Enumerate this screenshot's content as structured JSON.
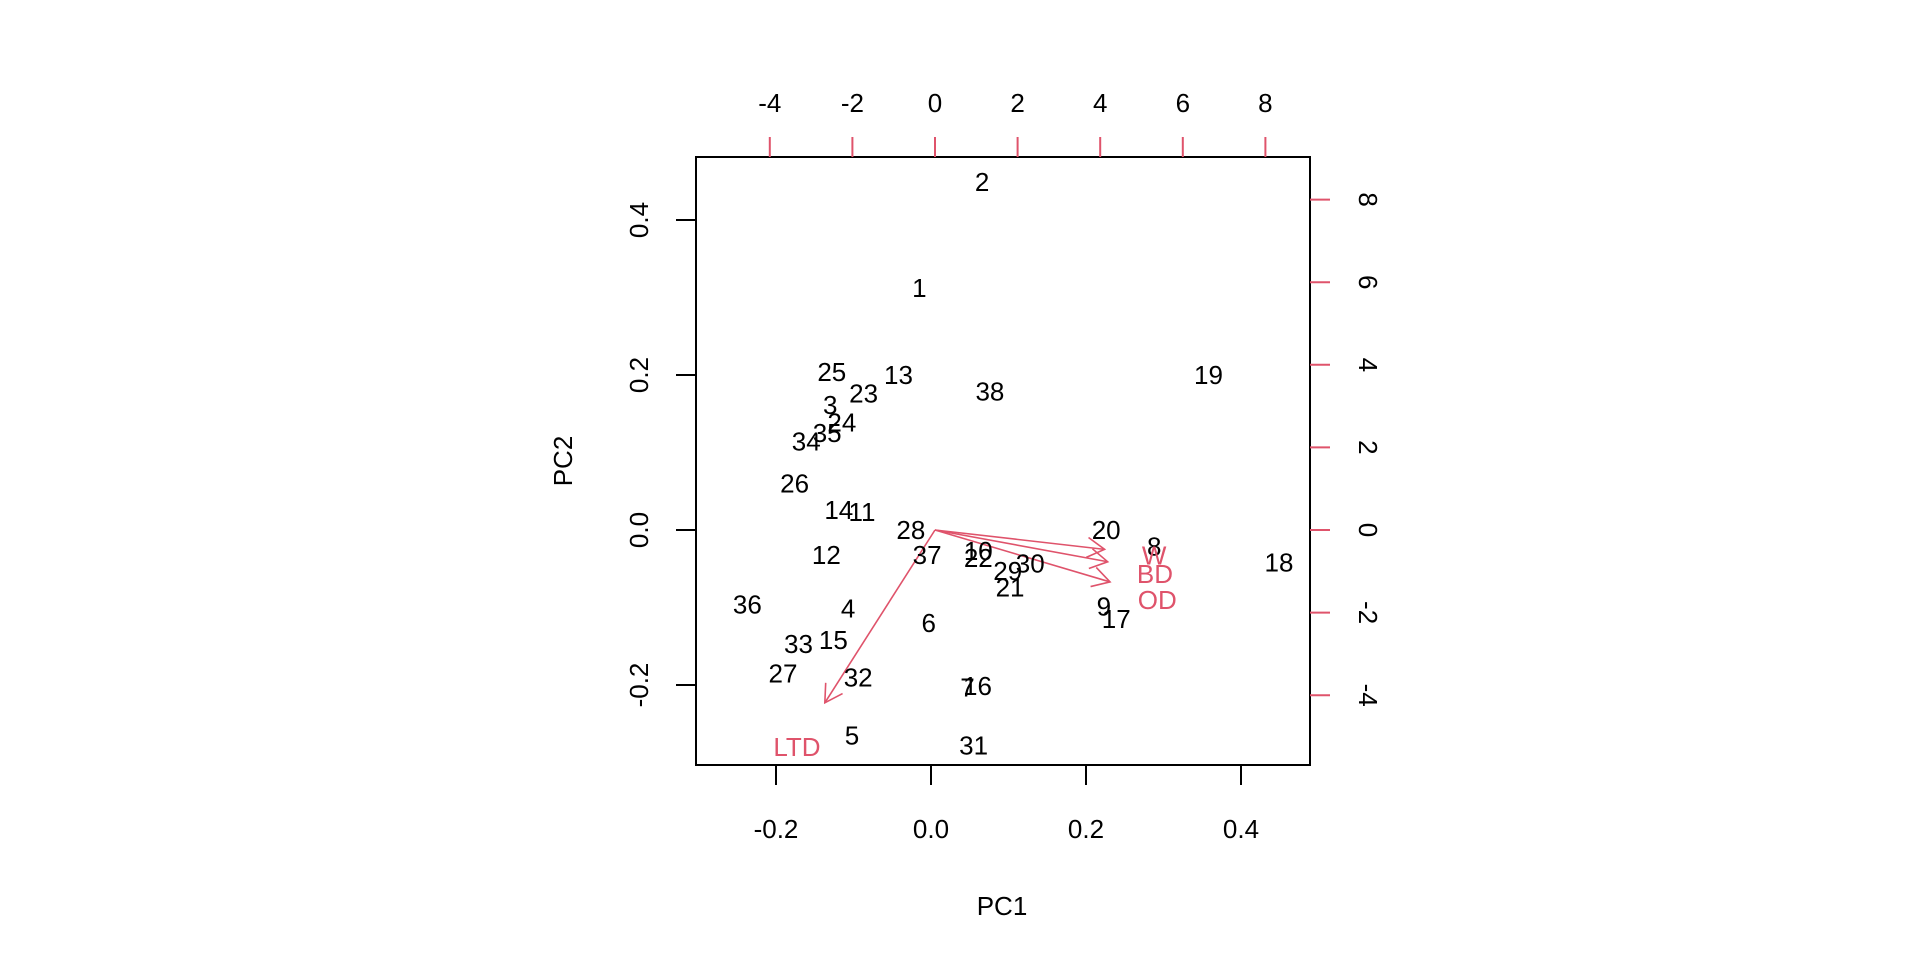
{
  "colors": {
    "background": "#ffffff",
    "observations": "#000000",
    "variables": "#DF536B",
    "axis": "#000000"
  },
  "chart_data": {
    "type": "scatter",
    "subtype": "biplot",
    "title": "",
    "xlabel": "PC1",
    "ylabel": "PC2",
    "xlim": [
      -0.31,
      0.49
    ],
    "ylim": [
      -0.304,
      0.48
    ],
    "grid": false,
    "legend": null,
    "bottom_ticks": [
      "-0.2",
      "0.0",
      "0.2",
      "0.4"
    ],
    "left_ticks": [
      "-0.2",
      "0.0",
      "0.2",
      "0.4"
    ],
    "top_ticks": [
      "-4",
      "-2",
      "0",
      "2",
      "4",
      "6",
      "8"
    ],
    "right_ticks": [
      "-4",
      "-2",
      "0",
      "2",
      "4",
      "6",
      "8"
    ],
    "observations": [
      {
        "label": "1",
        "x": -0.015,
        "y": 0.312
      },
      {
        "label": "2",
        "x": 0.066,
        "y": 0.449
      },
      {
        "label": "3",
        "x": -0.13,
        "y": 0.161
      },
      {
        "label": "4",
        "x": -0.107,
        "y": -0.101
      },
      {
        "label": "5",
        "x": -0.102,
        "y": -0.265
      },
      {
        "label": "6",
        "x": -0.003,
        "y": -0.12
      },
      {
        "label": "7",
        "x": 0.047,
        "y": -0.203
      },
      {
        "label": "8",
        "x": 0.288,
        "y": -0.021
      },
      {
        "label": "9",
        "x": 0.223,
        "y": -0.099
      },
      {
        "label": "10",
        "x": 0.061,
        "y": -0.027
      },
      {
        "label": "11",
        "x": -0.089,
        "y": 0.023
      },
      {
        "label": "12",
        "x": -0.135,
        "y": -0.032
      },
      {
        "label": "13",
        "x": -0.042,
        "y": 0.2
      },
      {
        "label": "14",
        "x": -0.119,
        "y": 0.026
      },
      {
        "label": "15",
        "x": -0.126,
        "y": -0.142
      },
      {
        "label": "16",
        "x": 0.06,
        "y": -0.201
      },
      {
        "label": "17",
        "x": 0.239,
        "y": -0.115
      },
      {
        "label": "18",
        "x": 0.449,
        "y": -0.042
      },
      {
        "label": "19",
        "x": 0.358,
        "y": 0.2
      },
      {
        "label": "20",
        "x": 0.226,
        "y": 0.0
      },
      {
        "label": "21",
        "x": 0.102,
        "y": -0.074
      },
      {
        "label": "22",
        "x": 0.061,
        "y": -0.036
      },
      {
        "label": "23",
        "x": -0.087,
        "y": 0.176
      },
      {
        "label": "24",
        "x": -0.115,
        "y": 0.139
      },
      {
        "label": "25",
        "x": -0.128,
        "y": 0.204
      },
      {
        "label": "26",
        "x": -0.176,
        "y": 0.06
      },
      {
        "label": "27",
        "x": -0.191,
        "y": -0.185
      },
      {
        "label": "28",
        "x": -0.026,
        "y": 0.0
      },
      {
        "label": "29",
        "x": 0.099,
        "y": -0.053
      },
      {
        "label": "30",
        "x": 0.128,
        "y": -0.043
      },
      {
        "label": "31",
        "x": 0.055,
        "y": -0.278
      },
      {
        "label": "32",
        "x": -0.094,
        "y": -0.19
      },
      {
        "label": "33",
        "x": -0.171,
        "y": -0.147
      },
      {
        "label": "34",
        "x": -0.161,
        "y": 0.114
      },
      {
        "label": "35",
        "x": -0.134,
        "y": 0.125
      },
      {
        "label": "36",
        "x": -0.237,
        "y": -0.096
      },
      {
        "label": "37",
        "x": -0.005,
        "y": -0.032
      },
      {
        "label": "38",
        "x": 0.076,
        "y": 0.179
      }
    ],
    "variables": [
      {
        "label": "W",
        "tip_x": 0.224,
        "tip_y": -0.025,
        "label_x": 0.288,
        "label_y": -0.033
      },
      {
        "label": "BD",
        "tip_x": 0.228,
        "tip_y": -0.041,
        "label_x": 0.289,
        "label_y": -0.057
      },
      {
        "label": "OD",
        "tip_x": 0.231,
        "tip_y": -0.067,
        "label_x": 0.292,
        "label_y": -0.09
      },
      {
        "label": "LTD",
        "tip_x": -0.137,
        "tip_y": -0.223,
        "label_x": -0.173,
        "label_y": -0.28
      }
    ]
  }
}
